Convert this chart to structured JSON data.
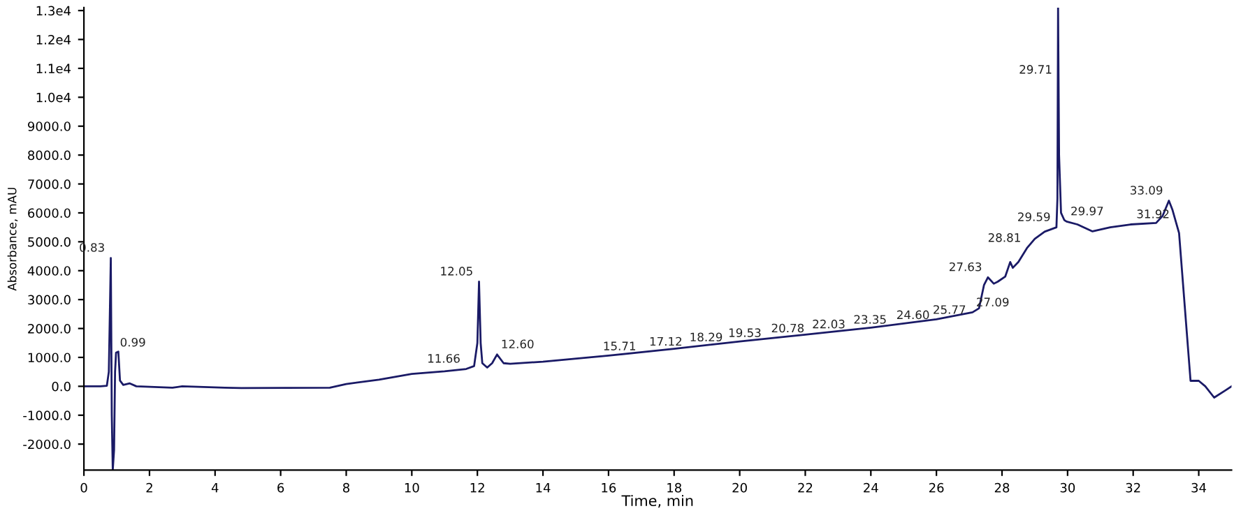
{
  "chart_data": {
    "type": "line",
    "xlabel": "Time, min",
    "ylabel": "Absorbance, mAU",
    "xlim": [
      0,
      35
    ],
    "ylim": [
      -2900,
      13100
    ],
    "xticks": [
      0,
      2,
      4,
      6,
      8,
      10,
      12,
      14,
      16,
      18,
      20,
      22,
      24,
      26,
      28,
      30,
      32,
      34
    ],
    "yticks": [
      {
        "value": -2000,
        "label": "-2000.0"
      },
      {
        "value": -1000,
        "label": "-1000.0"
      },
      {
        "value": 0,
        "label": "0.0"
      },
      {
        "value": 1000,
        "label": "1000.0"
      },
      {
        "value": 2000,
        "label": "2000.0"
      },
      {
        "value": 3000,
        "label": "3000.0"
      },
      {
        "value": 4000,
        "label": "4000.0"
      },
      {
        "value": 5000,
        "label": "5000.0"
      },
      {
        "value": 6000,
        "label": "6000.0"
      },
      {
        "value": 7000,
        "label": "7000.0"
      },
      {
        "value": 8000,
        "label": "8000.0"
      },
      {
        "value": 9000,
        "label": "9000.0"
      },
      {
        "value": 10000,
        "label": "1.0e4"
      },
      {
        "value": 11000,
        "label": "1.1e4"
      },
      {
        "value": 12000,
        "label": "1.2e4"
      },
      {
        "value": 13000,
        "label": "1.3e4"
      }
    ],
    "grid": false,
    "marker": "none",
    "line_style": "solid",
    "series": [
      {
        "color": "#1a1a66",
        "x": [
          0,
          0.5,
          0.7,
          0.76,
          0.8,
          0.82,
          0.85,
          0.88,
          0.92,
          0.95,
          0.98,
          1.05,
          1.1,
          1.2,
          1.4,
          1.6,
          2.7,
          3.0,
          4.3,
          4.8,
          7.5,
          8.0,
          9.0,
          10.0,
          11.0,
          11.66,
          11.9,
          12.0,
          12.05,
          12.1,
          12.15,
          12.3,
          12.45,
          12.6,
          12.8,
          13.0,
          14,
          16,
          18,
          20,
          22,
          24,
          26,
          27.1,
          27.3,
          27.45,
          27.57,
          27.75,
          27.87,
          28.1,
          28.25,
          28.33,
          28.5,
          28.76,
          29.0,
          29.3,
          29.66,
          29.69,
          29.71,
          29.74,
          29.8,
          29.9,
          29.97,
          30.3,
          30.76,
          31.3,
          31.92,
          32.7,
          32.9,
          33.09,
          33.2,
          33.4,
          33.75,
          34.0,
          34.2,
          34.47,
          34.8,
          35.0
        ],
        "values": [
          0,
          0,
          20,
          500,
          3100,
          4440,
          -1000,
          -2900,
          -2200,
          500,
          1160,
          1200,
          200,
          50,
          100,
          0,
          -50,
          0,
          -50,
          -60,
          -50,
          80,
          230,
          430,
          520,
          600,
          700,
          1500,
          3620,
          1500,
          800,
          650,
          800,
          1100,
          800,
          780,
          850,
          1060,
          1300,
          1550,
          1790,
          2030,
          2320,
          2560,
          2700,
          3500,
          3770,
          3550,
          3620,
          3800,
          4300,
          4100,
          4300,
          4780,
          5100,
          5350,
          5500,
          6500,
          13100,
          8000,
          6000,
          5750,
          5700,
          5600,
          5360,
          5500,
          5600,
          5650,
          5900,
          6420,
          6100,
          5300,
          190,
          190,
          0,
          -390,
          -150,
          0
        ]
      }
    ],
    "annotations": [
      {
        "text": "0.83",
        "x": 0.82,
        "y": 4440
      },
      {
        "text": "0.99",
        "x": 0.98,
        "y": 1160
      },
      {
        "text": "11.66",
        "x": 11.66,
        "y": 600
      },
      {
        "text": "12.05",
        "x": 12.05,
        "y": 3620
      },
      {
        "text": "12.60",
        "x": 12.6,
        "y": 1100
      },
      {
        "text": "15.71",
        "x": 15.71,
        "y": 1030
      },
      {
        "text": "17.12",
        "x": 17.12,
        "y": 1190
      },
      {
        "text": "18.29",
        "x": 18.29,
        "y": 1340
      },
      {
        "text": "19.53",
        "x": 19.53,
        "y": 1490
      },
      {
        "text": "20.78",
        "x": 20.78,
        "y": 1650
      },
      {
        "text": "22.03",
        "x": 22.03,
        "y": 1790
      },
      {
        "text": "23.35",
        "x": 23.35,
        "y": 1950
      },
      {
        "text": "24.60",
        "x": 24.6,
        "y": 2110
      },
      {
        "text": "25.77",
        "x": 25.77,
        "y": 2290
      },
      {
        "text": "27.09",
        "x": 27.09,
        "y": 2550
      },
      {
        "text": "27.63",
        "x": 27.57,
        "y": 3770
      },
      {
        "text": "28.81",
        "x": 28.76,
        "y": 4780
      },
      {
        "text": "29.59",
        "x": 29.66,
        "y": 5500
      },
      {
        "text": "29.71",
        "x": 29.71,
        "y": 10600
      },
      {
        "text": "29.97",
        "x": 29.97,
        "y": 5700
      },
      {
        "text": "31.92",
        "x": 31.92,
        "y": 5600
      },
      {
        "text": "33.09",
        "x": 33.09,
        "y": 6420
      }
    ]
  }
}
